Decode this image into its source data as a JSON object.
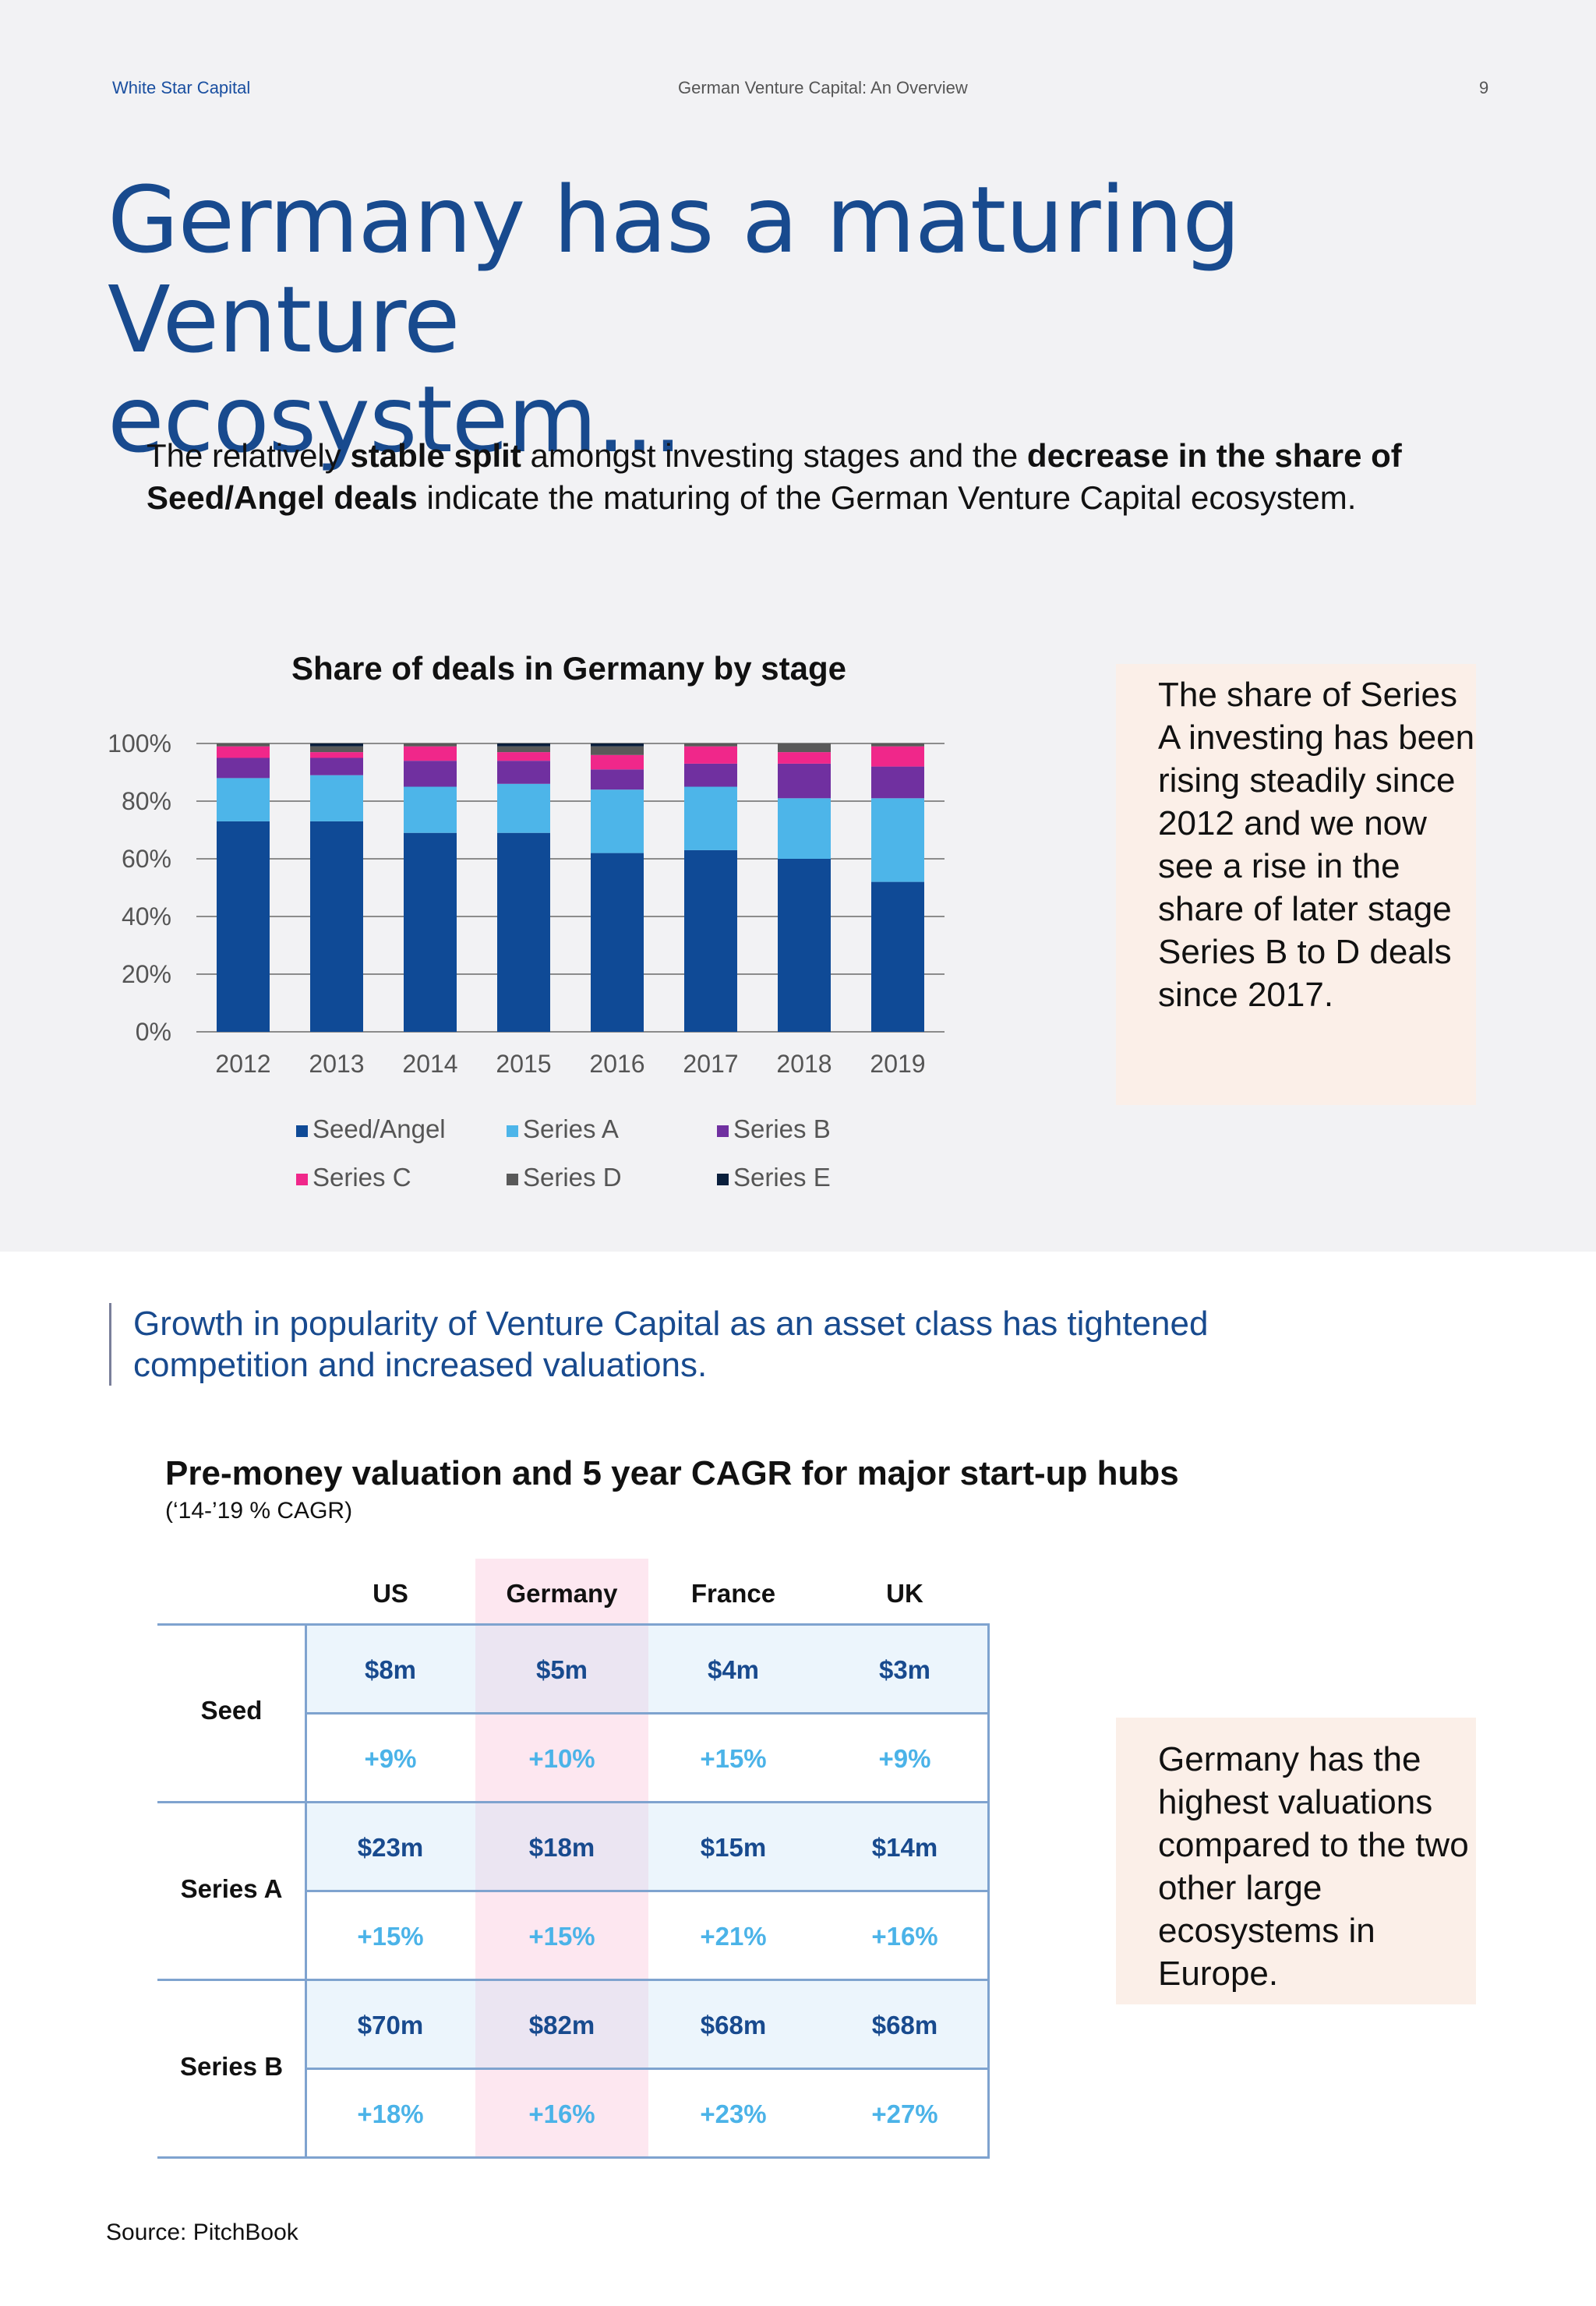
{
  "header": {
    "brand": "White Star Capital",
    "document_title": "German Venture Capital: An Overview",
    "page_number": "9"
  },
  "title": {
    "line1": "Germany has a maturing Venture",
    "line2": "ecosystem..."
  },
  "intro": {
    "part1": "The relatively ",
    "bold1": "stable split",
    "part2": " amongst investing stages and the ",
    "bold2": "decrease in the share of Seed/Angel deals",
    "part3": " indicate the maturing of the German Venture Capital ecosystem."
  },
  "chart_data": {
    "type": "bar",
    "stacked": true,
    "title": "Share of deals in Germany by stage",
    "categories": [
      "2012",
      "2013",
      "2014",
      "2015",
      "2016",
      "2017",
      "2018",
      "2019"
    ],
    "ylim": [
      0,
      100
    ],
    "yticks": [
      "0%",
      "20%",
      "40%",
      "60%",
      "80%",
      "100%"
    ],
    "grid": true,
    "legend_position": "bottom",
    "series": [
      {
        "name": "Seed/Angel",
        "color": "#0f4a96",
        "values": [
          73,
          73,
          69,
          69,
          62,
          63,
          60,
          52
        ]
      },
      {
        "name": "Series A",
        "color": "#4db5e9",
        "values": [
          15,
          16,
          16,
          17,
          22,
          22,
          21,
          29
        ]
      },
      {
        "name": "Series B",
        "color": "#7030a0",
        "values": [
          7,
          6,
          9,
          8,
          7,
          8,
          12,
          11
        ]
      },
      {
        "name": "Series C",
        "color": "#f0278a",
        "values": [
          4,
          2,
          5,
          3,
          5,
          6,
          4,
          7
        ]
      },
      {
        "name": "Series D",
        "color": "#595959",
        "values": [
          1,
          2,
          1,
          2,
          3,
          1,
          3,
          1
        ]
      },
      {
        "name": "Series E",
        "color": "#0a1f3c",
        "values": [
          0,
          1,
          0,
          1,
          1,
          0,
          0,
          0
        ]
      }
    ]
  },
  "note1": "The share of Series A investing has been rising steadily since 2012 and we now see a rise in the share of later stage Series B to D deals since 2017.",
  "pull_quote": "Growth in popularity of Venture Capital as an asset class has tightened competition and increased valuations.",
  "table": {
    "title": "Pre-money valuation and 5 year CAGR for major start-up hubs",
    "subtitle": "(‘14-’19 % CAGR)",
    "columns": [
      "US",
      "Germany",
      "France",
      "UK"
    ],
    "rows": [
      {
        "label": "Seed",
        "values": [
          "$8m",
          "$5m",
          "$4m",
          "$3m"
        ],
        "cagr": [
          "+9%",
          "+10%",
          "+15%",
          "+9%"
        ]
      },
      {
        "label": "Series A",
        "values": [
          "$23m",
          "$18m",
          "$15m",
          "$14m"
        ],
        "cagr": [
          "+15%",
          "+15%",
          "+21%",
          "+16%"
        ]
      },
      {
        "label": "Series B",
        "values": [
          "$70m",
          "$82m",
          "$68m",
          "$68m"
        ],
        "cagr": [
          "+18%",
          "+16%",
          "+23%",
          "+27%"
        ]
      }
    ]
  },
  "note2": "Germany has the highest valuations compared to the two other large ecosystems in Europe.",
  "source": "Source: PitchBook",
  "colors": {
    "title_blue": "#184a8e",
    "highlight_pink": "#fde7f0",
    "note_bg": "#fbefe8",
    "cagr_blue": "#4bb3e8"
  }
}
